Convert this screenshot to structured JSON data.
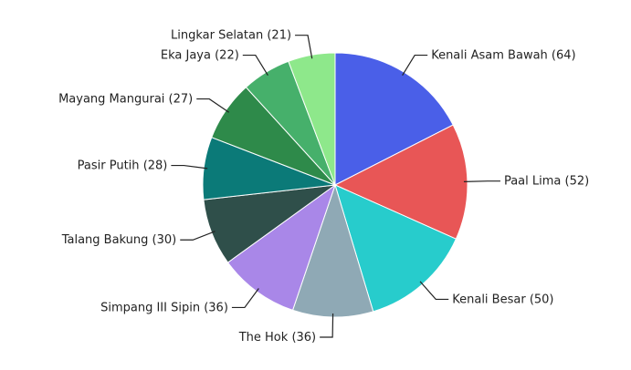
{
  "chart_data": {
    "type": "pie",
    "categories": [
      "Kenali Asam Bawah",
      "Paal Lima",
      "Kenali Besar",
      "The Hok",
      "Simpang III Sipin",
      "Talang Bakung",
      "Pasir Putih",
      "Mayang Mangurai",
      "Eka Jaya",
      "Lingkar Selatan"
    ],
    "values": [
      64,
      52,
      50,
      36,
      36,
      30,
      28,
      27,
      22,
      21
    ],
    "value_labels": [
      "(64)",
      "(52)",
      "(50)",
      "(36)",
      "(36)",
      "(30)",
      "(28)",
      "(27)",
      "(22)",
      "(21)"
    ],
    "colors": [
      "#4a5fe8",
      "#e85656",
      "#27cccc",
      "#8fa9b5",
      "#a987e8",
      "#2f4f4a",
      "#0b7a78",
      "#2e8a4a",
      "#46b06b",
      "#8ee88b"
    ]
  }
}
